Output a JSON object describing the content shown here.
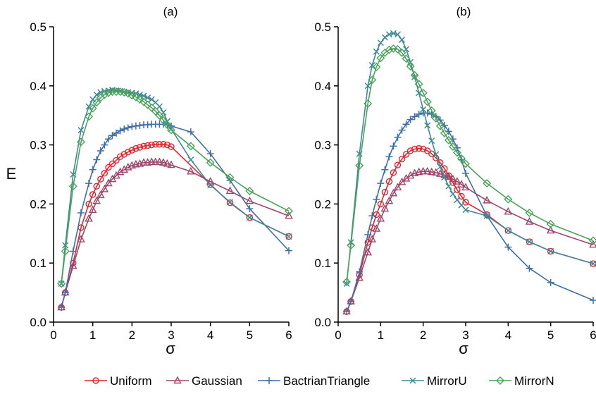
{
  "chart_data": {
    "type": "line",
    "panels": [
      {
        "title": "(a)",
        "xlabel": "σ",
        "ylabel": "E",
        "xlim": [
          0,
          6
        ],
        "ylim": [
          0,
          0.5
        ],
        "xticks": [
          0,
          1,
          2,
          3,
          4,
          5,
          6
        ],
        "yticks": [
          0.0,
          0.1,
          0.2,
          0.3,
          0.4,
          0.5
        ],
        "series": [
          {
            "name": "Uniform",
            "color": "#e0262f",
            "marker": "circle",
            "x": [
              0.2,
              0.3,
              0.5,
              0.7,
              0.9,
              1.0,
              1.1,
              1.2,
              1.3,
              1.4,
              1.5,
              1.6,
              1.7,
              1.8,
              1.9,
              2.0,
              2.1,
              2.2,
              2.3,
              2.4,
              2.5,
              2.6,
              2.7,
              2.8,
              2.9,
              3.0,
              4.0,
              4.5,
              5.0,
              6.0
            ],
            "y": [
              0.025,
              0.05,
              0.1,
              0.16,
              0.2,
              0.216,
              0.23,
              0.242,
              0.252,
              0.262,
              0.268,
              0.274,
              0.28,
              0.284,
              0.288,
              0.291,
              0.294,
              0.296,
              0.298,
              0.299,
              0.3,
              0.301,
              0.301,
              0.301,
              0.3,
              0.297,
              0.233,
              0.202,
              0.177,
              0.145
            ]
          },
          {
            "name": "Gaussian",
            "color": "#a0456b",
            "marker": "triangle",
            "x": [
              0.2,
              0.3,
              0.5,
              0.7,
              0.9,
              1.0,
              1.1,
              1.2,
              1.3,
              1.4,
              1.5,
              1.6,
              1.7,
              1.8,
              1.9,
              2.0,
              2.1,
              2.2,
              2.3,
              2.4,
              2.5,
              2.6,
              2.7,
              2.8,
              2.9,
              3.0,
              3.5,
              4.0,
              4.5,
              5.0,
              6.0
            ],
            "y": [
              0.025,
              0.05,
              0.095,
              0.14,
              0.175,
              0.19,
              0.205,
              0.215,
              0.225,
              0.235,
              0.242,
              0.248,
              0.254,
              0.258,
              0.262,
              0.265,
              0.267,
              0.268,
              0.27,
              0.27,
              0.271,
              0.271,
              0.271,
              0.27,
              0.268,
              0.266,
              0.255,
              0.238,
              0.222,
              0.205,
              0.18
            ]
          },
          {
            "name": "BactrianTriangle",
            "color": "#3f6fa8",
            "marker": "plus",
            "x": [
              0.2,
              0.3,
              0.5,
              0.7,
              0.9,
              1.0,
              1.1,
              1.2,
              1.3,
              1.4,
              1.5,
              1.6,
              1.7,
              1.8,
              1.9,
              2.0,
              2.1,
              2.2,
              2.3,
              2.4,
              2.5,
              2.6,
              2.7,
              2.8,
              2.9,
              3.0,
              3.5,
              4.0,
              4.5,
              5.0,
              6.0
            ],
            "y": [
              0.025,
              0.05,
              0.12,
              0.185,
              0.235,
              0.258,
              0.275,
              0.29,
              0.3,
              0.31,
              0.316,
              0.32,
              0.324,
              0.327,
              0.329,
              0.331,
              0.332,
              0.333,
              0.334,
              0.334,
              0.335,
              0.335,
              0.335,
              0.335,
              0.334,
              0.332,
              0.322,
              0.285,
              0.24,
              0.192,
              0.121
            ]
          },
          {
            "name": "MirrorU",
            "color": "#3e8a96",
            "marker": "x",
            "x": [
              0.2,
              0.3,
              0.5,
              0.7,
              0.9,
              1.0,
              1.1,
              1.2,
              1.3,
              1.4,
              1.5,
              1.6,
              1.7,
              1.8,
              1.9,
              2.0,
              2.1,
              2.2,
              2.3,
              2.4,
              2.5,
              2.6,
              2.7,
              2.8,
              2.9,
              3.0,
              3.5,
              4.0,
              4.5,
              5.0,
              6.0
            ],
            "y": [
              0.065,
              0.13,
              0.25,
              0.325,
              0.365,
              0.377,
              0.385,
              0.389,
              0.391,
              0.392,
              0.393,
              0.392,
              0.391,
              0.39,
              0.389,
              0.388,
              0.387,
              0.385,
              0.383,
              0.38,
              0.377,
              0.372,
              0.365,
              0.355,
              0.34,
              0.327,
              0.275,
              0.232,
              0.203,
              0.177,
              0.145
            ]
          },
          {
            "name": "MirrorN",
            "color": "#4aa35a",
            "marker": "diamond",
            "x": [
              0.2,
              0.3,
              0.5,
              0.7,
              0.9,
              1.0,
              1.1,
              1.2,
              1.3,
              1.4,
              1.5,
              1.6,
              1.7,
              1.8,
              1.9,
              2.0,
              2.1,
              2.2,
              2.3,
              2.4,
              2.5,
              2.6,
              2.7,
              2.8,
              2.9,
              3.0,
              3.5,
              4.0,
              4.5,
              5.0,
              6.0
            ],
            "y": [
              0.065,
              0.12,
              0.23,
              0.305,
              0.348,
              0.362,
              0.372,
              0.38,
              0.385,
              0.388,
              0.39,
              0.39,
              0.39,
              0.389,
              0.387,
              0.384,
              0.381,
              0.377,
              0.373,
              0.368,
              0.363,
              0.357,
              0.35,
              0.342,
              0.334,
              0.325,
              0.298,
              0.27,
              0.245,
              0.222,
              0.188
            ]
          }
        ]
      },
      {
        "title": "(b)",
        "xlabel": "σ",
        "ylabel": "",
        "xlim": [
          0,
          6
        ],
        "ylim": [
          0,
          0.5
        ],
        "xticks": [
          0,
          1,
          2,
          3,
          4,
          5,
          6
        ],
        "yticks": [
          0.0,
          0.1,
          0.2,
          0.3,
          0.4,
          0.5
        ],
        "series": [
          {
            "name": "Uniform",
            "color": "#e0262f",
            "marker": "circle",
            "x": [
              0.2,
              0.3,
              0.5,
              0.7,
              0.8,
              0.9,
              1.0,
              1.1,
              1.2,
              1.3,
              1.4,
              1.5,
              1.6,
              1.7,
              1.8,
              1.9,
              2.0,
              2.1,
              2.2,
              2.3,
              2.4,
              2.5,
              2.6,
              2.7,
              2.8,
              2.9,
              3.0,
              3.5,
              4.0,
              4.5,
              5.0,
              6.0
            ],
            "y": [
              0.018,
              0.035,
              0.08,
              0.135,
              0.16,
              0.182,
              0.2,
              0.22,
              0.238,
              0.253,
              0.266,
              0.276,
              0.284,
              0.29,
              0.293,
              0.294,
              0.293,
              0.29,
              0.285,
              0.278,
              0.27,
              0.26,
              0.248,
              0.236,
              0.224,
              0.213,
              0.203,
              0.182,
              0.155,
              0.136,
              0.12,
              0.099
            ]
          },
          {
            "name": "Gaussian",
            "color": "#a0456b",
            "marker": "triangle",
            "x": [
              0.2,
              0.3,
              0.5,
              0.7,
              0.8,
              0.9,
              1.0,
              1.1,
              1.2,
              1.3,
              1.4,
              1.5,
              1.6,
              1.7,
              1.8,
              1.9,
              2.0,
              2.1,
              2.2,
              2.3,
              2.4,
              2.5,
              2.6,
              2.7,
              2.8,
              2.9,
              3.0,
              3.5,
              4.0,
              4.5,
              5.0,
              6.0
            ],
            "y": [
              0.018,
              0.035,
              0.075,
              0.118,
              0.14,
              0.158,
              0.175,
              0.192,
              0.205,
              0.218,
              0.228,
              0.237,
              0.243,
              0.248,
              0.252,
              0.254,
              0.255,
              0.255,
              0.254,
              0.253,
              0.251,
              0.249,
              0.246,
              0.242,
              0.238,
              0.233,
              0.228,
              0.206,
              0.187,
              0.17,
              0.155,
              0.131
            ]
          },
          {
            "name": "BactrianTriangle",
            "color": "#3f6fa8",
            "marker": "plus",
            "x": [
              0.2,
              0.3,
              0.5,
              0.7,
              0.8,
              0.9,
              1.0,
              1.1,
              1.2,
              1.3,
              1.4,
              1.5,
              1.6,
              1.7,
              1.8,
              1.9,
              2.0,
              2.1,
              2.2,
              2.3,
              2.4,
              2.5,
              2.6,
              2.7,
              2.8,
              2.9,
              3.0,
              3.5,
              4.0,
              4.5,
              5.0,
              6.0
            ],
            "y": [
              0.018,
              0.035,
              0.085,
              0.148,
              0.18,
              0.208,
              0.235,
              0.258,
              0.28,
              0.298,
              0.313,
              0.325,
              0.335,
              0.343,
              0.348,
              0.352,
              0.354,
              0.354,
              0.352,
              0.348,
              0.342,
              0.333,
              0.323,
              0.31,
              0.295,
              0.275,
              0.252,
              0.18,
              0.127,
              0.091,
              0.067,
              0.037
            ]
          },
          {
            "name": "MirrorU",
            "color": "#3e8a96",
            "marker": "x",
            "x": [
              0.2,
              0.3,
              0.5,
              0.7,
              0.8,
              0.9,
              1.0,
              1.1,
              1.2,
              1.3,
              1.4,
              1.5,
              1.6,
              1.7,
              1.8,
              1.9,
              2.0,
              2.1,
              2.2,
              2.3,
              2.4,
              2.5,
              2.6,
              2.7,
              2.8,
              2.9,
              3.0,
              3.5,
              4.0,
              4.5,
              5.0,
              6.0
            ],
            "y": [
              0.065,
              0.135,
              0.285,
              0.4,
              0.435,
              0.458,
              0.473,
              0.482,
              0.487,
              0.489,
              0.487,
              0.478,
              0.462,
              0.44,
              0.415,
              0.388,
              0.36,
              0.333,
              0.307,
              0.284,
              0.263,
              0.245,
              0.23,
              0.217,
              0.207,
              0.198,
              0.19,
              0.18,
              0.155,
              0.136,
              0.12,
              0.099
            ]
          },
          {
            "name": "MirrorN",
            "color": "#4aa35a",
            "marker": "diamond",
            "x": [
              0.2,
              0.3,
              0.5,
              0.7,
              0.8,
              0.9,
              1.0,
              1.1,
              1.2,
              1.3,
              1.4,
              1.5,
              1.6,
              1.7,
              1.8,
              1.9,
              2.0,
              2.1,
              2.2,
              2.3,
              2.4,
              2.5,
              2.6,
              2.7,
              2.8,
              2.9,
              3.0,
              3.5,
              4.0,
              4.5,
              5.0,
              6.0
            ],
            "y": [
              0.068,
              0.13,
              0.265,
              0.37,
              0.41,
              0.432,
              0.447,
              0.456,
              0.461,
              0.463,
              0.462,
              0.456,
              0.446,
              0.433,
              0.418,
              0.403,
              0.388,
              0.373,
              0.358,
              0.345,
              0.332,
              0.32,
              0.308,
              0.297,
              0.287,
              0.277,
              0.268,
              0.235,
              0.208,
              0.185,
              0.166,
              0.138
            ]
          }
        ]
      }
    ],
    "legend": {
      "position": "bottom-center",
      "entries": [
        "Uniform",
        "Gaussian",
        "BactrianTriangle",
        "MirrorU",
        "MirrorN"
      ]
    },
    "grid": false
  }
}
